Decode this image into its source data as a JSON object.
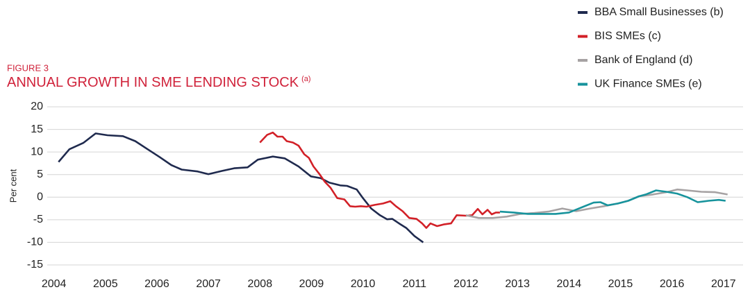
{
  "chart_data": {
    "type": "line",
    "figure_label": "FIGURE 3",
    "title": "ANNUAL GROWTH IN SME LENDING STOCK",
    "title_note": "(a)",
    "ylabel": "Per cent",
    "xlim": [
      2003.87,
      2017.38
    ],
    "xticks": [
      2004,
      2005,
      2006,
      2007,
      2008,
      2009,
      2010,
      2011,
      2012,
      2013,
      2014,
      2015,
      2016,
      2017
    ],
    "ylim": [
      -15,
      20
    ],
    "yticks": [
      -15,
      -10,
      -5,
      0,
      5,
      10,
      15,
      20
    ],
    "grid": true,
    "legend": "top-right",
    "series": [
      {
        "name": "BBA Small Businesses (b)",
        "color": "#1f2a4e",
        "x": [
          2004.09,
          2004.3,
          2004.57,
          2004.81,
          2005.04,
          2005.34,
          2005.58,
          2005.82,
          2006.05,
          2006.28,
          2006.48,
          2006.79,
          2007.0,
          2007.26,
          2007.5,
          2007.76,
          2007.96,
          2008.25,
          2008.48,
          2008.75,
          2008.99,
          2009.18,
          2009.35,
          2009.56,
          2009.69,
          2009.88,
          2010.0,
          2010.16,
          2010.33,
          2010.47,
          2010.57,
          2010.7,
          2010.84,
          2011.0,
          2011.17
        ],
        "values": [
          7.8,
          10.6,
          12,
          14.1,
          13.7,
          13.5,
          12.4,
          10.6,
          8.9,
          7.1,
          6.1,
          5.7,
          5.1,
          5.8,
          6.4,
          6.6,
          8.3,
          9.0,
          8.6,
          6.8,
          4.6,
          4.2,
          3.2,
          2.6,
          2.5,
          1.7,
          -0.2,
          -2.5,
          -4.0,
          -4.9,
          -4.8,
          -5.8,
          -6.8,
          -8.6,
          -10.0
        ]
      },
      {
        "name": "BIS SMEs (c)",
        "color": "#d22027",
        "x": [
          2008.0,
          2008.14,
          2008.25,
          2008.34,
          2008.44,
          2008.52,
          2008.64,
          2008.75,
          2008.86,
          2008.95,
          2009.04,
          2009.15,
          2009.26,
          2009.37,
          2009.5,
          2009.64,
          2009.75,
          2009.85,
          2009.96,
          2010.07,
          2010.23,
          2010.39,
          2010.53,
          2010.64,
          2010.77,
          2010.9,
          2011.04,
          2011.15,
          2011.23,
          2011.31,
          2011.44,
          2011.58,
          2011.71,
          2011.82,
          2012.0,
          2012.12,
          2012.23,
          2012.32,
          2012.42,
          2012.5,
          2012.58,
          2012.66
        ],
        "values": [
          12.1,
          13.8,
          14.3,
          13.4,
          13.4,
          12.4,
          12.1,
          11.4,
          9.5,
          8.7,
          6.8,
          5.2,
          3.4,
          2.1,
          -0.2,
          -0.5,
          -2.0,
          -2.1,
          -2.0,
          -2.1,
          -1.7,
          -1.4,
          -0.9,
          -2.0,
          -3.1,
          -4.6,
          -4.8,
          -5.8,
          -6.8,
          -5.8,
          -6.4,
          -6.0,
          -5.8,
          -4.0,
          -4.1,
          -4.0,
          -2.6,
          -3.8,
          -2.8,
          -3.8,
          -3.4,
          -3.4
        ]
      },
      {
        "name": "Bank of England (d)",
        "color": "#a6a2a3",
        "x": [
          2012.0,
          2012.25,
          2012.52,
          2012.79,
          2013.06,
          2013.33,
          2013.6,
          2013.87,
          2014.14,
          2014.41,
          2014.68,
          2014.95,
          2015.15,
          2015.36,
          2015.63,
          2015.89,
          2016.1,
          2016.3,
          2016.57,
          2016.84,
          2017.08
        ],
        "values": [
          -4.0,
          -4.6,
          -4.6,
          -4.3,
          -3.7,
          -3.5,
          -3.2,
          -2.5,
          -3.1,
          -2.5,
          -2.0,
          -1.4,
          -0.8,
          0.2,
          0.6,
          1.1,
          1.7,
          1.5,
          1.2,
          1.1,
          0.6
        ]
      },
      {
        "name": "UK Finance SMEs (e)",
        "color": "#17939c",
        "x": [
          2012.66,
          2012.93,
          2013.2,
          2013.47,
          2013.74,
          2014.0,
          2014.28,
          2014.48,
          2014.61,
          2014.75,
          2014.95,
          2015.15,
          2015.36,
          2015.49,
          2015.69,
          2015.89,
          2016.1,
          2016.3,
          2016.5,
          2016.71,
          2016.91,
          2017.04
        ],
        "values": [
          -3.2,
          -3.4,
          -3.7,
          -3.7,
          -3.7,
          -3.4,
          -2.1,
          -1.2,
          -1.1,
          -1.8,
          -1.4,
          -0.8,
          0.2,
          0.6,
          1.5,
          1.2,
          0.8,
          0.0,
          -1.1,
          -0.8,
          -0.6,
          -0.8
        ]
      }
    ]
  }
}
